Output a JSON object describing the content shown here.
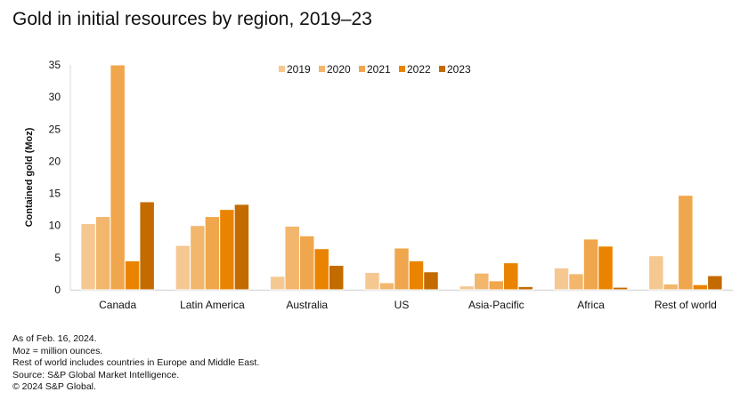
{
  "title": "Gold in initial resources by region, 2019–23",
  "chart_data": {
    "type": "bar",
    "title": "Gold in initial resources by region, 2019–23",
    "xlabel": "",
    "ylabel": "Contained gold (Moz)",
    "ylim": [
      0,
      35
    ],
    "yticks": [
      0,
      5,
      10,
      15,
      20,
      25,
      30,
      35
    ],
    "grid": false,
    "legend": "top-center",
    "categories": [
      "Canada",
      "Latin America",
      "Australia",
      "US",
      "Asia-Pacific",
      "Africa",
      "Rest of world"
    ],
    "series": [
      {
        "name": "2019",
        "color": "#F5C892",
        "values": [
          10.3,
          6.9,
          2.1,
          2.7,
          0.6,
          3.4,
          5.3
        ]
      },
      {
        "name": "2020",
        "color": "#F2B66C",
        "values": [
          11.4,
          10.0,
          9.9,
          1.1,
          2.6,
          2.5,
          0.9
        ]
      },
      {
        "name": "2021",
        "color": "#F0A64C",
        "values": [
          35.0,
          11.4,
          8.4,
          6.5,
          1.4,
          7.9,
          14.7
        ]
      },
      {
        "name": "2022",
        "color": "#EA8400",
        "values": [
          4.5,
          12.5,
          6.4,
          4.5,
          4.2,
          6.8,
          0.8
        ]
      },
      {
        "name": "2023",
        "color": "#C46B00",
        "values": [
          13.7,
          13.3,
          3.8,
          2.8,
          0.5,
          0.4,
          2.2
        ]
      }
    ]
  },
  "notes": [
    "As of Feb. 16, 2024.",
    "Moz = million ounces.",
    "Rest of world includes countries in Europe and Middle East.",
    "Source: S&P Global Market Intelligence.",
    "© 2024 S&P Global."
  ]
}
